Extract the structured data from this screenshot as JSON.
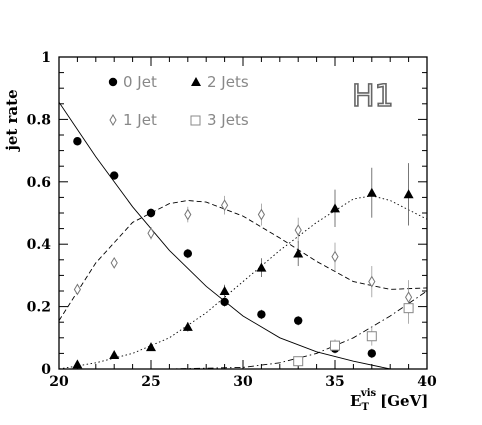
{
  "chart_data": {
    "type": "scatter",
    "logo": "H1",
    "xlabel": "E",
    "xlabel_sub": "T",
    "xlabel_sup": "vis",
    "xlabel_unit": "[GeV]",
    "ylabel": "jet rate",
    "xlim": [
      20,
      40
    ],
    "ylim": [
      0,
      1
    ],
    "xticks": [
      20,
      25,
      30,
      35,
      40
    ],
    "yticks": [
      0,
      0.2,
      0.4,
      0.6,
      0.8,
      1
    ],
    "ytick_labels": [
      "0",
      "0.2",
      "0.4",
      "0.6",
      "0.8",
      "1"
    ],
    "series": [
      {
        "name": "0 Jet",
        "marker": "filled-circle",
        "x": [
          21,
          23,
          25,
          27,
          29,
          31,
          33,
          35,
          37
        ],
        "y": [
          0.73,
          0.62,
          0.5,
          0.37,
          0.215,
          0.175,
          0.155,
          0.065,
          0.05
        ],
        "err": [
          0.01,
          0.012,
          0.015,
          0.015,
          0.015,
          0.015,
          0.015,
          0.015,
          0.015
        ]
      },
      {
        "name": "1 Jet",
        "marker": "open-diamond",
        "x": [
          21,
          23,
          25,
          27,
          29,
          31,
          33,
          35,
          37,
          39
        ],
        "y": [
          0.255,
          0.34,
          0.435,
          0.495,
          0.525,
          0.495,
          0.445,
          0.36,
          0.28,
          0.23
        ],
        "err": [
          0.015,
          0.015,
          0.02,
          0.025,
          0.03,
          0.035,
          0.04,
          0.045,
          0.05,
          0.055
        ]
      },
      {
        "name": "2 Jets",
        "marker": "filled-triangle",
        "x": [
          21,
          23,
          25,
          27,
          29,
          31,
          33,
          35,
          37,
          39
        ],
        "y": [
          0.015,
          0.045,
          0.07,
          0.135,
          0.25,
          0.325,
          0.37,
          0.515,
          0.565,
          0.56
        ],
        "err": [
          0.005,
          0.008,
          0.01,
          0.015,
          0.02,
          0.03,
          0.04,
          0.06,
          0.08,
          0.1
        ]
      },
      {
        "name": "3 Jets",
        "marker": "open-square",
        "x": [
          33,
          35,
          37,
          39
        ],
        "y": [
          0.025,
          0.075,
          0.105,
          0.195
        ],
        "err": [
          0.01,
          0.02,
          0.03,
          0.05
        ]
      }
    ],
    "curves": [
      {
        "series": "0 Jet",
        "style": "solid",
        "x": [
          20,
          22,
          24,
          26,
          28,
          30,
          32,
          34,
          36,
          38
        ],
        "y": [
          0.855,
          0.68,
          0.52,
          0.38,
          0.265,
          0.17,
          0.1,
          0.055,
          0.025,
          0
        ]
      },
      {
        "series": "1 Jet",
        "style": "dashed",
        "x": [
          20,
          22,
          24,
          26,
          27,
          28,
          30,
          32,
          34,
          36,
          38,
          40
        ],
        "y": [
          0.155,
          0.34,
          0.47,
          0.53,
          0.54,
          0.535,
          0.49,
          0.42,
          0.345,
          0.28,
          0.255,
          0.26
        ]
      },
      {
        "series": "2 Jets",
        "style": "dotted",
        "x": [
          20,
          22,
          24,
          26,
          28,
          30,
          32,
          34,
          36,
          37,
          38,
          40
        ],
        "y": [
          0,
          0.02,
          0.05,
          0.1,
          0.18,
          0.28,
          0.38,
          0.47,
          0.545,
          0.555,
          0.54,
          0.48
        ]
      },
      {
        "series": "3 Jets",
        "style": "dashdot",
        "x": [
          20,
          26,
          30,
          32,
          34,
          36,
          38,
          40
        ],
        "y": [
          0,
          0,
          0.005,
          0.02,
          0.05,
          0.1,
          0.17,
          0.25
        ]
      }
    ],
    "legend_position": "top-left",
    "grid": false
  }
}
